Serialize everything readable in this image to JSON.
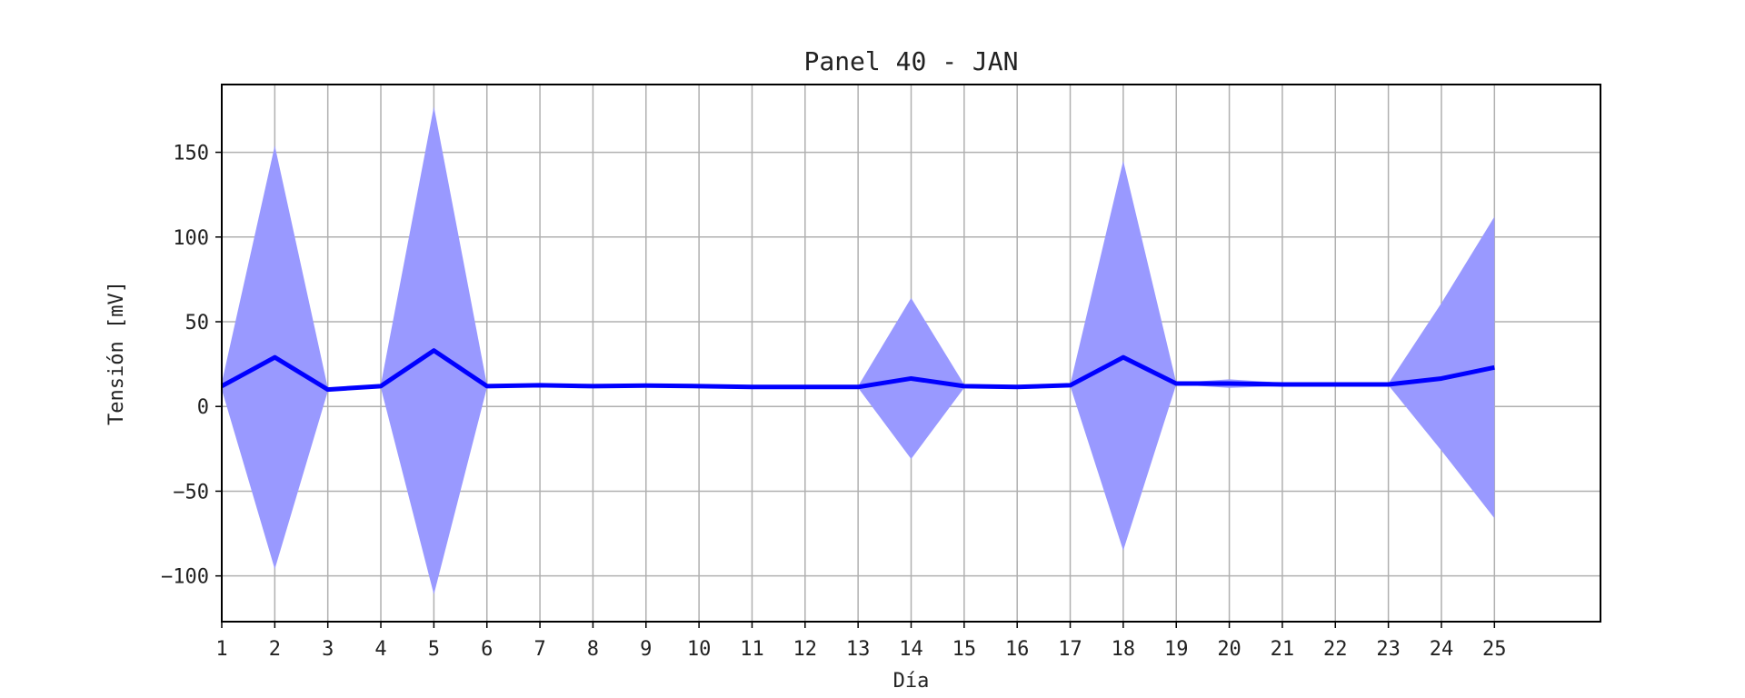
{
  "chart_data": {
    "type": "line",
    "title": "Panel 40 - JAN",
    "xlabel": "Día",
    "ylabel": "Tensión [mV]",
    "x": [
      1,
      2,
      3,
      4,
      5,
      6,
      7,
      8,
      9,
      10,
      11,
      12,
      13,
      14,
      15,
      16,
      17,
      18,
      19,
      20,
      21,
      22,
      23,
      24,
      25
    ],
    "xlim": [
      1,
      27
    ],
    "ylim": [
      -127,
      190
    ],
    "yticks": [
      -100,
      -50,
      0,
      50,
      100,
      150
    ],
    "ytick_labels": [
      "−100",
      "−50",
      "0",
      "50",
      "100",
      "150"
    ],
    "grid": true,
    "series": [
      {
        "values": [
          12,
          29,
          10,
          12,
          33,
          12,
          12.5,
          12,
          12.3,
          12,
          11.5,
          11.5,
          11.5,
          16.5,
          12,
          11.5,
          12.5,
          29,
          13.5,
          13.5,
          13,
          13,
          13,
          16.5,
          23
        ],
        "band_upper": [
          14,
          154,
          11,
          13,
          177,
          13,
          13,
          12.5,
          12.5,
          12.5,
          12,
          12,
          12,
          64,
          13,
          12,
          13,
          145,
          14,
          16,
          14,
          13.5,
          13.5,
          61,
          112
        ],
        "band_lower": [
          10,
          -96,
          9,
          11,
          -111,
          11,
          12,
          11.5,
          12,
          11.5,
          11,
          11,
          11,
          -31,
          11,
          11,
          12,
          -85,
          13,
          11,
          12,
          12.5,
          12.5,
          -26,
          -66
        ]
      }
    ],
    "colors": {
      "line": "#0000ff",
      "band": "#9999ff",
      "grid": "#b0b0b0",
      "axes": "#000000"
    }
  }
}
